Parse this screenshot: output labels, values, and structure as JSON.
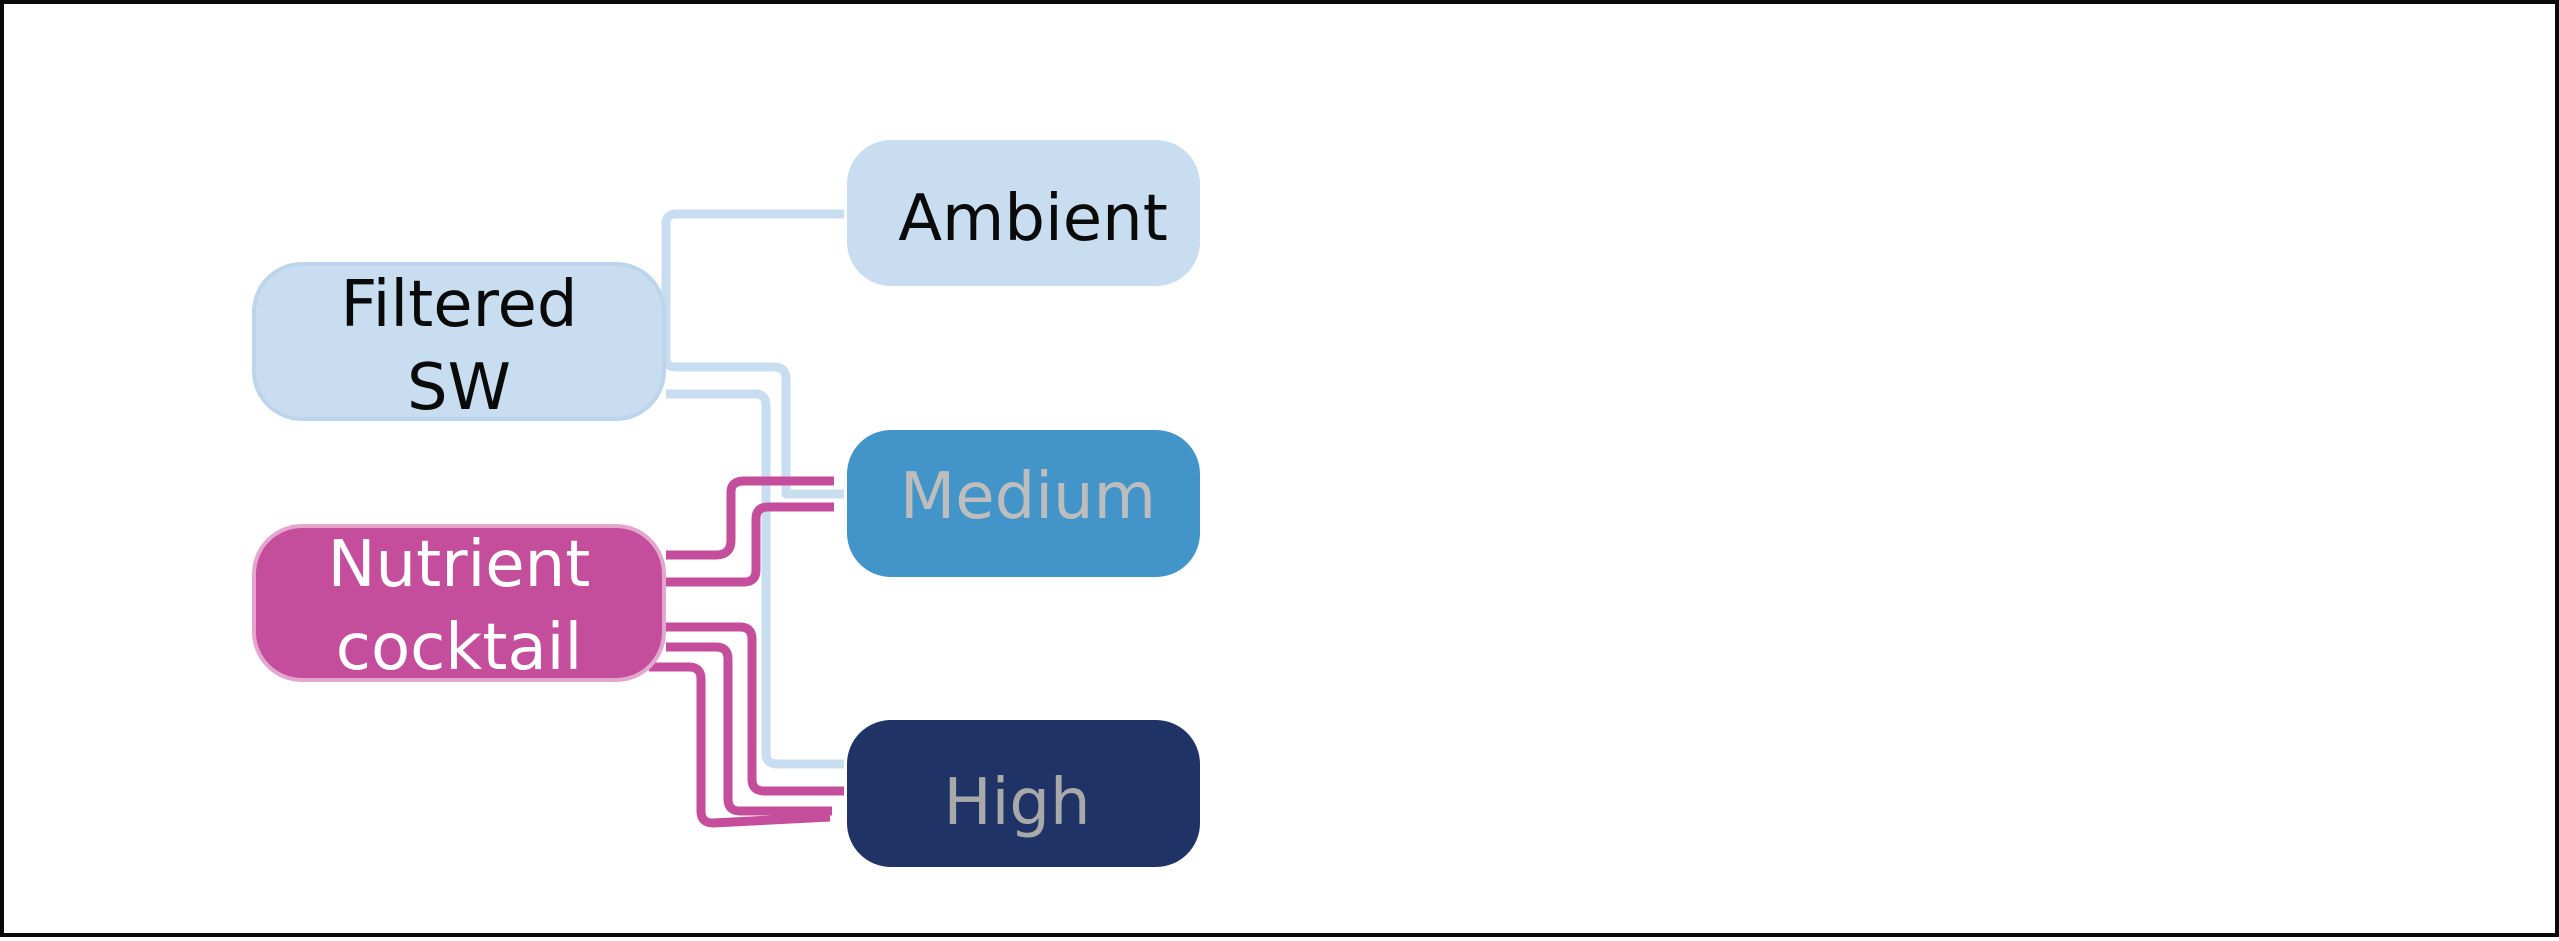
{
  "nodes": {
    "filtered_sw": {
      "line1": "Filtered",
      "line2": "SW",
      "fill": "#c9ddf0",
      "stroke": "#bcd4ec",
      "text_color": "#0a0a0a"
    },
    "nutrient_cocktail": {
      "line1": "Nutrient",
      "line2": "cocktail",
      "fill": "#c54e9c",
      "stroke": "#e3a7cf",
      "text_color": "#ffffff"
    },
    "ambient": {
      "label": "Ambient",
      "fill": "#c9ddf0",
      "text_color": "#0a0a0a"
    },
    "medium": {
      "label": "Medium",
      "fill": "#4394c9",
      "text_color": "#bdbdbd"
    },
    "high": {
      "label": "High",
      "fill": "#1f3366",
      "text_color": "#a9a9a9"
    }
  },
  "connector_colors": {
    "seawater": "#c9ddf0",
    "nutrient": "#c54e9c"
  }
}
